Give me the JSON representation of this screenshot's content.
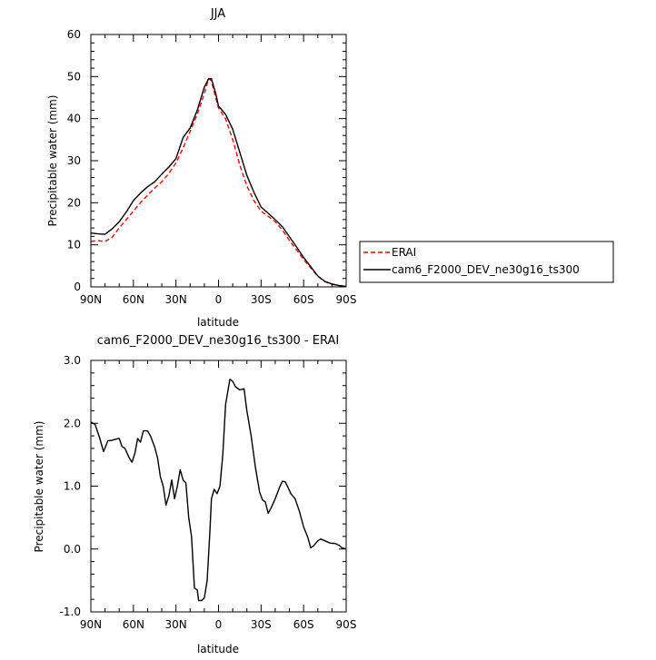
{
  "chart_data": [
    {
      "type": "line",
      "title": "JJA",
      "xlabel": "latitude",
      "ylabel": "Precipitable water (mm)",
      "xlim": [
        90,
        -90
      ],
      "ylim": [
        0,
        60
      ],
      "x_ticks": [
        90,
        60,
        30,
        0,
        -30,
        -60,
        -90
      ],
      "x_tick_labels": [
        "90N",
        "60N",
        "30N",
        "0",
        "30S",
        "60S",
        "90S"
      ],
      "y_ticks": [
        0,
        10,
        20,
        30,
        40,
        50,
        60
      ],
      "y_tick_labels": [
        "0",
        "10",
        "20",
        "30",
        "40",
        "50",
        "60"
      ],
      "legend_position": "right",
      "series": [
        {
          "name": "ERAI",
          "color": "#ff0000",
          "dash": "dashed",
          "points": [
            [
              90,
              10.8
            ],
            [
              85,
              11.0
            ],
            [
              80,
              10.8
            ],
            [
              75,
              11.8
            ],
            [
              70,
              14.0
            ],
            [
              65,
              16.0
            ],
            [
              60,
              18.0
            ],
            [
              55,
              20.0
            ],
            [
              50,
              21.8
            ],
            [
              45,
              23.5
            ],
            [
              40,
              25.0
            ],
            [
              35,
              27.0
            ],
            [
              30,
              29.5
            ],
            [
              25,
              33.0
            ],
            [
              20,
              37.0
            ],
            [
              15,
              41.0
            ],
            [
              10,
              46.0
            ],
            [
              7,
              49.5
            ],
            [
              5,
              49.0
            ],
            [
              2,
              45.0
            ],
            [
              0,
              42.5
            ],
            [
              -5,
              40.0
            ],
            [
              -10,
              35.0
            ],
            [
              -15,
              29.0
            ],
            [
              -20,
              24.0
            ],
            [
              -25,
              20.5
            ],
            [
              -30,
              18.0
            ],
            [
              -35,
              16.8
            ],
            [
              -40,
              15.5
            ],
            [
              -45,
              13.5
            ],
            [
              -50,
              11.0
            ],
            [
              -55,
              8.8
            ],
            [
              -60,
              6.5
            ],
            [
              -65,
              4.5
            ],
            [
              -70,
              2.5
            ],
            [
              -75,
              1.2
            ],
            [
              -80,
              0.6
            ],
            [
              -85,
              0.3
            ],
            [
              -90,
              0.1
            ]
          ]
        },
        {
          "name": "cam6_F2000_DEV_ne30g16_ts300",
          "color": "#000000",
          "dash": "solid",
          "points": [
            [
              90,
              12.8
            ],
            [
              85,
              12.6
            ],
            [
              80,
              12.5
            ],
            [
              75,
              13.8
            ],
            [
              70,
              15.5
            ],
            [
              65,
              17.8
            ],
            [
              60,
              20.5
            ],
            [
              55,
              22.3
            ],
            [
              50,
              23.8
            ],
            [
              45,
              25.0
            ],
            [
              40,
              26.8
            ],
            [
              35,
              28.5
            ],
            [
              30,
              30.5
            ],
            [
              25,
              35.5
            ],
            [
              20,
              37.8
            ],
            [
              15,
              42.0
            ],
            [
              10,
              47.5
            ],
            [
              7,
              49.5
            ],
            [
              5,
              49.5
            ],
            [
              2,
              46.0
            ],
            [
              0,
              43.0
            ],
            [
              -5,
              41.0
            ],
            [
              -10,
              37.5
            ],
            [
              -15,
              32.0
            ],
            [
              -20,
              26.5
            ],
            [
              -25,
              22.5
            ],
            [
              -30,
              19.0
            ],
            [
              -35,
              17.5
            ],
            [
              -40,
              16.0
            ],
            [
              -45,
              14.3
            ],
            [
              -50,
              11.9
            ],
            [
              -55,
              9.5
            ],
            [
              -60,
              7.0
            ],
            [
              -65,
              4.8
            ],
            [
              -70,
              2.6
            ],
            [
              -75,
              1.3
            ],
            [
              -80,
              0.7
            ],
            [
              -85,
              0.3
            ],
            [
              -90,
              0.1
            ]
          ]
        }
      ]
    },
    {
      "type": "line",
      "title": "cam6_F2000_DEV_ne30g16_ts300 - ERAI",
      "xlabel": "latitude",
      "ylabel": "Precipitable water (mm)",
      "xlim": [
        90,
        -90
      ],
      "ylim": [
        -1.0,
        3.0
      ],
      "x_ticks": [
        90,
        60,
        30,
        0,
        -30,
        -60,
        -90
      ],
      "x_tick_labels": [
        "90N",
        "60N",
        "30N",
        "0",
        "30S",
        "60S",
        "90S"
      ],
      "y_ticks": [
        -1.0,
        0.0,
        1.0,
        2.0,
        3.0
      ],
      "y_tick_labels": [
        "-1.0",
        "0.0",
        "1.0",
        "2.0",
        "3.0"
      ],
      "series": [
        {
          "color": "#000000",
          "dash": "solid",
          "points": [
            [
              90,
              2.02
            ],
            [
              87,
              1.98
            ],
            [
              84,
              1.78
            ],
            [
              81,
              1.55
            ],
            [
              78,
              1.72
            ],
            [
              75,
              1.73
            ],
            [
              72,
              1.75
            ],
            [
              70,
              1.76
            ],
            [
              68,
              1.63
            ],
            [
              66,
              1.6
            ],
            [
              63,
              1.45
            ],
            [
              61,
              1.38
            ],
            [
              59,
              1.52
            ],
            [
              57,
              1.76
            ],
            [
              55,
              1.7
            ],
            [
              53,
              1.88
            ],
            [
              50,
              1.88
            ],
            [
              48,
              1.8
            ],
            [
              45,
              1.62
            ],
            [
              43,
              1.45
            ],
            [
              41,
              1.15
            ],
            [
              39,
              1.0
            ],
            [
              37,
              0.7
            ],
            [
              35,
              0.85
            ],
            [
              33,
              1.1
            ],
            [
              31,
              0.8
            ],
            [
              29,
              1.0
            ],
            [
              27,
              1.26
            ],
            [
              25,
              1.1
            ],
            [
              23,
              1.05
            ],
            [
              21,
              0.5
            ],
            [
              19,
              0.2
            ],
            [
              17,
              -0.62
            ],
            [
              15,
              -0.65
            ],
            [
              14,
              -0.82
            ],
            [
              12,
              -0.82
            ],
            [
              10,
              -0.78
            ],
            [
              8,
              -0.5
            ],
            [
              6,
              0.3
            ],
            [
              5,
              0.8
            ],
            [
              3,
              0.95
            ],
            [
              1,
              0.88
            ],
            [
              -1,
              1.0
            ],
            [
              -3,
              1.5
            ],
            [
              -5,
              2.3
            ],
            [
              -8,
              2.7
            ],
            [
              -10,
              2.67
            ],
            [
              -12,
              2.58
            ],
            [
              -15,
              2.53
            ],
            [
              -18,
              2.55
            ],
            [
              -20,
              2.2
            ],
            [
              -23,
              1.8
            ],
            [
              -26,
              1.3
            ],
            [
              -29,
              0.9
            ],
            [
              -31,
              0.78
            ],
            [
              -33,
              0.75
            ],
            [
              -35,
              0.57
            ],
            [
              -37,
              0.65
            ],
            [
              -40,
              0.8
            ],
            [
              -43,
              0.98
            ],
            [
              -45,
              1.08
            ],
            [
              -47,
              1.07
            ],
            [
              -49,
              0.98
            ],
            [
              -51,
              0.88
            ],
            [
              -54,
              0.8
            ],
            [
              -57,
              0.6
            ],
            [
              -60,
              0.35
            ],
            [
              -63,
              0.18
            ],
            [
              -65,
              0.02
            ],
            [
              -67,
              0.05
            ],
            [
              -70,
              0.13
            ],
            [
              -72,
              0.16
            ],
            [
              -75,
              0.13
            ],
            [
              -78,
              0.1
            ],
            [
              -80,
              0.09
            ],
            [
              -82,
              0.09
            ],
            [
              -85,
              0.06
            ],
            [
              -87,
              0.02
            ],
            [
              -90,
              0.0
            ]
          ]
        }
      ]
    }
  ]
}
